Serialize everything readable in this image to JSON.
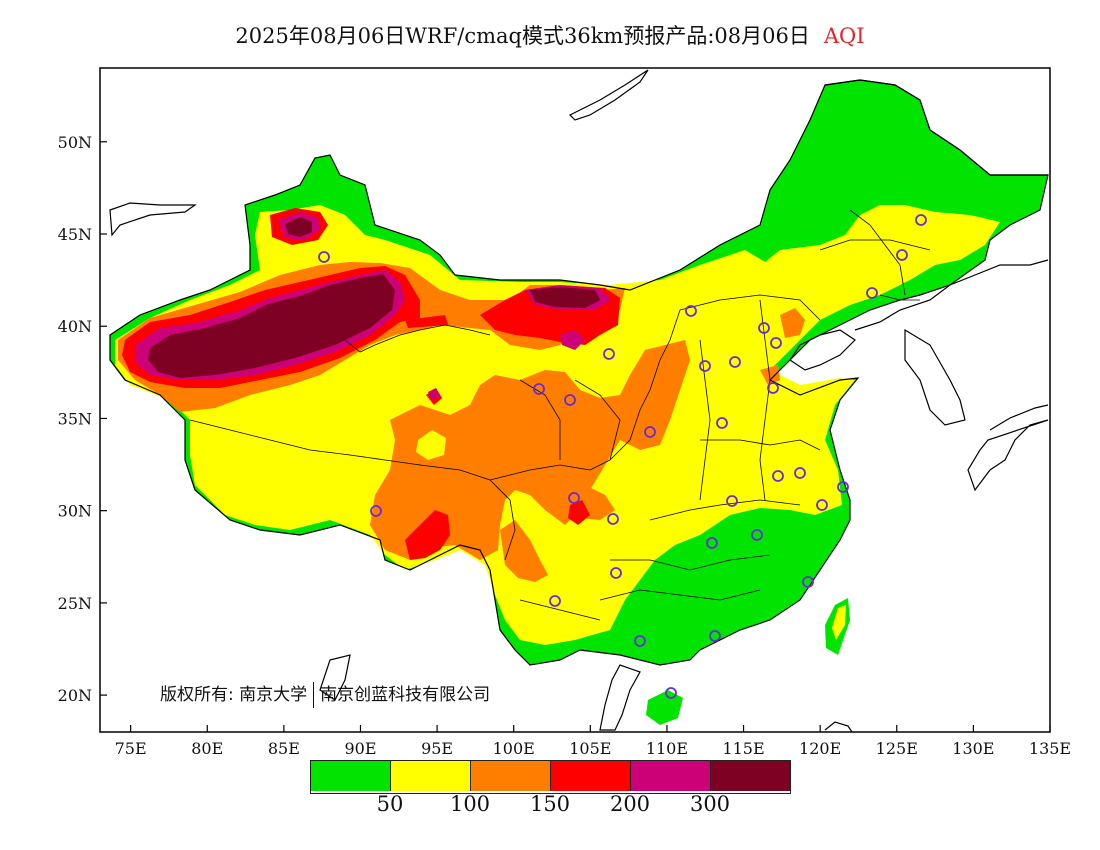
{
  "title": {
    "main": "2025年08月06日WRF/cmaq模式36km预报产品:08月06日",
    "variable": "AQI"
  },
  "axes": {
    "lon_ticks": [
      "75E",
      "80E",
      "85E",
      "90E",
      "95E",
      "100E",
      "105E",
      "110E",
      "115E",
      "120E",
      "125E",
      "130E",
      "135E"
    ],
    "lat_ticks": [
      "50N",
      "45N",
      "40N",
      "35N",
      "30N",
      "25N",
      "20N"
    ],
    "lon_range": [
      73.0,
      135.0
    ],
    "lat_range": [
      18.0,
      54.0
    ]
  },
  "copyright": {
    "prefix": "版权所有:",
    "org1": "南京大学",
    "org2": "南京创蓝科技有限公司"
  },
  "legend": {
    "colors": [
      "#00e400",
      "#ffff00",
      "#ff7e00",
      "#ff0000",
      "#cc0077",
      "#7e0023"
    ],
    "labels": [
      "50",
      "100",
      "150",
      "200",
      "300"
    ]
  },
  "colors": {
    "good": "#00e400",
    "moderate": "#ffff00",
    "sensitive": "#ff7e00",
    "unhealthy": "#ff0000",
    "very_unhealthy": "#cc0077",
    "hazardous": "#7e0023"
  }
}
